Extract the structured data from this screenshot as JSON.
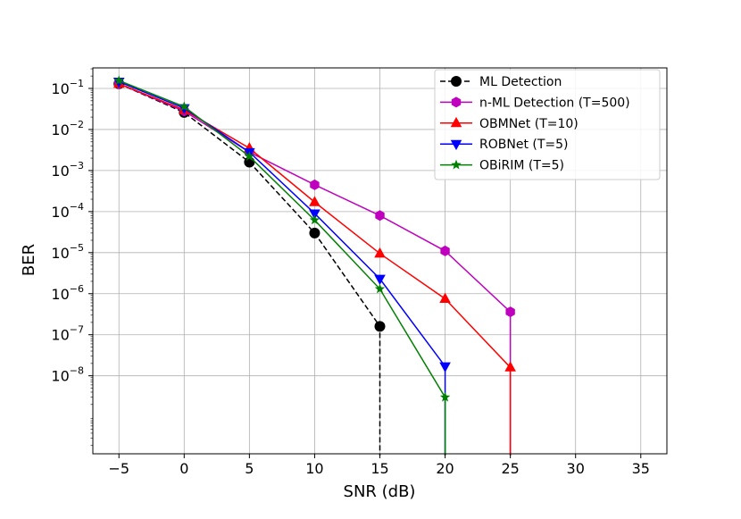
{
  "chart_data": {
    "type": "line",
    "title": "",
    "xlabel": "SNR (dB)",
    "ylabel": "BER",
    "xlim": [
      -7,
      37
    ],
    "ylim_log10": [
      -9.9,
      -0.5
    ],
    "y_scale": "log",
    "grid": true,
    "legend_position": "top-right",
    "x_ticks": [
      -5,
      0,
      5,
      10,
      15,
      20,
      25,
      30,
      35
    ],
    "y_ticks": [
      {
        "base": "10",
        "exp": "−1",
        "value": -1
      },
      {
        "base": "10",
        "exp": "−2",
        "value": -2
      },
      {
        "base": "10",
        "exp": "−3",
        "value": -3
      },
      {
        "base": "10",
        "exp": "−4",
        "value": -4
      },
      {
        "base": "10",
        "exp": "−5",
        "value": -5
      },
      {
        "base": "10",
        "exp": "−6",
        "value": -6
      },
      {
        "base": "10",
        "exp": "−7",
        "value": -7
      },
      {
        "base": "10",
        "exp": "−8",
        "value": -8
      }
    ],
    "x_tick_labels": [
      "−5",
      "0",
      "5",
      "10",
      "15",
      "20",
      "25",
      "30",
      "35"
    ],
    "series": [
      {
        "name": "ML Detection",
        "color": "#000000",
        "dash": true,
        "marker": "circle",
        "x": [
          -5,
          0,
          5,
          10,
          15
        ],
        "y": [
          0.13,
          0.026,
          0.0016,
          3e-05,
          1.6e-07
        ],
        "drops_to_zero_at": 15
      },
      {
        "name": "n-ML Detection (T=500)",
        "color": "#bf00bf",
        "dash": false,
        "marker": "hexagon",
        "x": [
          -5,
          0,
          5,
          10,
          15,
          20,
          25
        ],
        "y": [
          0.13,
          0.028,
          0.0028,
          0.00045,
          8e-05,
          1.1e-05,
          3.6e-07
        ],
        "drops_to_zero_at": 25
      },
      {
        "name": "OBMNet (T=10)",
        "color": "#ff0000",
        "dash": false,
        "marker": "triangle-up",
        "x": [
          -5,
          0,
          5,
          10,
          15,
          20,
          25
        ],
        "y": [
          0.13,
          0.03,
          0.0035,
          0.00017,
          9.5e-06,
          7.5e-07,
          1.6e-08
        ],
        "drops_to_zero_at": 25
      },
      {
        "name": "ROBNet (T=5)",
        "color": "#0000ff",
        "dash": false,
        "marker": "triangle-down",
        "x": [
          -5,
          0,
          5,
          10,
          15,
          20
        ],
        "y": [
          0.145,
          0.033,
          0.0028,
          9e-05,
          2.3e-06,
          1.7e-08
        ],
        "drops_to_zero_at": 20
      },
      {
        "name": "OBiRIM (T=5)",
        "color": "#008000",
        "dash": false,
        "marker": "star",
        "x": [
          -5,
          0,
          5,
          10,
          15,
          20
        ],
        "y": [
          0.155,
          0.036,
          0.0022,
          6.2e-05,
          1.3e-06,
          3e-09
        ],
        "drops_to_zero_at": 20
      }
    ]
  }
}
